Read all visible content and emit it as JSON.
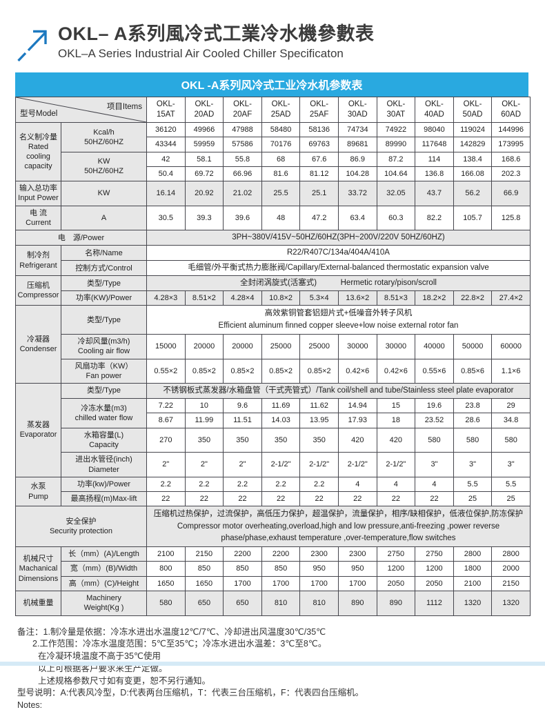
{
  "page": {
    "title": "OKL– A系列風冷式工業冷水機參數表",
    "subtitle": "OKL–A Series Industrial Air Cooled Chiller Specificaton",
    "banner": "OKL -A系列风冷式工业冷水机参数表",
    "accent_blue": "#29a9e0",
    "arrow_blue": "#1d79c0"
  },
  "table": {
    "corner": {
      "model_label": "型号Model",
      "items_label": "项目Items"
    },
    "models": [
      "OKL-\n15AT",
      "OKL-\n20AD",
      "OKL-\n20AF",
      "OKL-\n25AD",
      "OKL-\n25AF",
      "OKL-\n30AD",
      "OKL-\n30AT",
      "OKL-\n40AD",
      "OKL-\n50AD",
      "OKL-\n60AD"
    ],
    "rows": [
      {
        "n": "rated-cooling-kcal-50hz",
        "bg": "w",
        "cells": [
          {
            "k": "cat",
            "t": "名义制冷量\nRated\ncooling\ncapacity",
            "r": 4
          },
          {
            "k": "item",
            "t": "Kcal/h\n50HZ/60HZ",
            "r": 2
          }
        ],
        "vals": [
          "36120",
          "49966",
          "47988",
          "58480",
          "58136",
          "74734",
          "74922",
          "98040",
          "119024",
          "144996"
        ]
      },
      {
        "n": "rated-cooling-kcal-60hz",
        "bg": "w",
        "cells": [],
        "vals": [
          "43344",
          "59959",
          "57586",
          "70176",
          "69763",
          "89681",
          "89990",
          "117648",
          "142829",
          "173995"
        ]
      },
      {
        "n": "rated-cooling-kw-50hz",
        "bg": "w",
        "cells": [
          {
            "k": "item",
            "t": "KW\n50HZ/60HZ",
            "r": 2
          }
        ],
        "vals": [
          "42",
          "58.1",
          "55.8",
          "68",
          "67.6",
          "86.9",
          "87.2",
          "114",
          "138.4",
          "168.6"
        ]
      },
      {
        "n": "rated-cooling-kw-60hz",
        "bg": "w",
        "cells": [],
        "vals": [
          "50.4",
          "69.72",
          "66.96",
          "81.6",
          "81.12",
          "104.28",
          "104.64",
          "136.8",
          "166.08",
          "202.3"
        ]
      },
      {
        "n": "input-power",
        "bg": "g",
        "cells": [
          {
            "k": "cat",
            "t": "输入总功率\nInput Power"
          },
          {
            "k": "item",
            "t": "KW"
          }
        ],
        "vals": [
          "16.14",
          "20.92",
          "21.02",
          "25.5",
          "25.1",
          "33.72",
          "32.05",
          "43.7",
          "56.2",
          "66.9"
        ]
      },
      {
        "n": "current",
        "bg": "w",
        "cells": [
          {
            "k": "cat",
            "t": "电 流\nCurrent"
          },
          {
            "k": "item",
            "t": "A"
          }
        ],
        "vals": [
          "30.5",
          "39.3",
          "39.6",
          "48",
          "47.2",
          "63.4",
          "60.3",
          "82.2",
          "105.7",
          "125.8"
        ]
      },
      {
        "n": "power-source",
        "bg": "g",
        "cells": [
          {
            "k": "cat",
            "t": "电　源/Power",
            "c": 2
          },
          {
            "k": "wide",
            "t": "3PH~380V/415V~50HZ/60HZ(3PH~200V/220V  50HZ/60HZ)",
            "c": 10
          }
        ]
      },
      {
        "n": "refrigerant-name",
        "bg": "w",
        "cells": [
          {
            "k": "cat",
            "t": "制冷剂\nRefrigerant",
            "r": 2
          },
          {
            "k": "item",
            "t": "名称/Name"
          },
          {
            "k": "wide",
            "t": "R22/R407C/134a/404A/410A",
            "c": 10
          }
        ]
      },
      {
        "n": "refrigerant-control",
        "bg": "w",
        "cells": [
          {
            "k": "item",
            "t": "控制方式/Control"
          },
          {
            "k": "wide",
            "t": "毛细管/外平衡式热力膨胀阀/Capillary/External-balanced thermostatic expansion valve",
            "c": 10
          }
        ]
      },
      {
        "n": "compressor-type",
        "bg": "g",
        "cells": [
          {
            "k": "cat",
            "t": "压缩机\nCompressor",
            "r": 2
          },
          {
            "k": "item",
            "t": "类型/Type"
          },
          {
            "k": "wide",
            "t": "全封闭涡旋式(活塞式)　　　Hermetic rotary/pison/scroll",
            "c": 10
          }
        ]
      },
      {
        "n": "compressor-power",
        "bg": "g",
        "cells": [
          {
            "k": "item",
            "t": "功率(KW)/Power"
          }
        ],
        "vals": [
          "4.28×3",
          "8.51×2",
          "4.28×4",
          "10.8×2",
          "5.3×4",
          "13.6×2",
          "8.51×3",
          "18.2×2",
          "22.8×2",
          "27.4×2"
        ]
      },
      {
        "n": "condenser-type",
        "bg": "w",
        "cells": [
          {
            "k": "cat",
            "t": "冷凝器\nCondenser",
            "r": 3
          },
          {
            "k": "item",
            "t": "类型/Type"
          },
          {
            "k": "wide",
            "t": "高效紫铜管套铝翅片式+低噪音外转子风机\nEfficient aluminum finned copper sleeve+low noise external rotor fan",
            "c": 10
          }
        ]
      },
      {
        "n": "cooling-air-flow",
        "bg": "w",
        "cells": [
          {
            "k": "item",
            "t": "冷却风量(m3/h)\nCooling air flow"
          }
        ],
        "vals": [
          "15000",
          "20000",
          "20000",
          "25000",
          "25000",
          "30000",
          "30000",
          "40000",
          "50000",
          "60000"
        ]
      },
      {
        "n": "fan-power",
        "bg": "w",
        "cells": [
          {
            "k": "item",
            "t": "风扇功率（KW）\nFan power"
          }
        ],
        "vals": [
          "0.55×2",
          "0.85×2",
          "0.85×2",
          "0.85×2",
          "0.85×2",
          "0.42×6",
          "0.42×6",
          "0.55×6",
          "0.85×6",
          "1.1×6"
        ]
      },
      {
        "n": "evaporator-type",
        "bg": "g",
        "cells": [
          {
            "k": "cat",
            "t": "蒸发器\nEvaporator",
            "r": 5
          },
          {
            "k": "item",
            "t": "类型/Type"
          },
          {
            "k": "wide",
            "t": "不锈钢板式蒸发器/水箱盘管（干式壳管式）/Tank coil/shell and tube/Stainless steel plate evaporator",
            "c": 10
          }
        ]
      },
      {
        "n": "chilled-water-flow-50hz",
        "bg": "w",
        "cells": [
          {
            "k": "item",
            "t": "冷冻水量(m3)\nchilled water flow",
            "r": 2
          }
        ],
        "vals": [
          "7.22",
          "10",
          "9.6",
          "11.69",
          "11.62",
          "14.94",
          "15",
          "19.6",
          "23.8",
          "29"
        ]
      },
      {
        "n": "chilled-water-flow-60hz",
        "bg": "w",
        "cells": [],
        "vals": [
          "8.67",
          "11.99",
          "11.51",
          "14.03",
          "13.95",
          "17.93",
          "18",
          "23.52",
          "28.6",
          "34.8"
        ]
      },
      {
        "n": "tank-capacity",
        "bg": "w",
        "cells": [
          {
            "k": "item",
            "t": "水箱容量(L)\nCapacity"
          }
        ],
        "vals": [
          "270",
          "350",
          "350",
          "350",
          "350",
          "420",
          "420",
          "580",
          "580",
          "580"
        ]
      },
      {
        "n": "pipe-diameter",
        "bg": "w",
        "cells": [
          {
            "k": "item",
            "t": "进出水管径(inch)\nDiameter"
          }
        ],
        "vals": [
          "2\"",
          "2\"",
          "2\"",
          "2-1/2\"",
          "2-1/2\"",
          "2-1/2\"",
          "2-1/2\"",
          "3\"",
          "3\"",
          "3\""
        ]
      },
      {
        "n": "pump-power",
        "bg": "w",
        "cells": [
          {
            "k": "cat",
            "t": "水泵\nPump",
            "r": 2
          },
          {
            "k": "item",
            "t": "功率(kw)/Power"
          }
        ],
        "vals": [
          "2.2",
          "2.2",
          "2.2",
          "2.2",
          "2.2",
          "4",
          "4",
          "4",
          "5.5",
          "5.5"
        ]
      },
      {
        "n": "pump-max-lift",
        "bg": "w",
        "cells": [
          {
            "k": "item",
            "t": "最高扬程(m)Max-lift"
          }
        ],
        "vals": [
          "22",
          "22",
          "22",
          "22",
          "22",
          "22",
          "22",
          "22",
          "25",
          "25"
        ]
      },
      {
        "n": "security-protection",
        "bg": "g",
        "cells": [
          {
            "k": "cat",
            "t": "安全保护\nSecurity protection",
            "c": 2
          },
          {
            "k": "wide",
            "t": "压缩机过热保护，过流保护，高低压力保护，超温保护，流量保护，相序/缺相保护，低液位保护,防冻保护\nCompressor motor overheating,overload,high and low pressure,anti-freezing ,power reverse phase/phase,exhaust temperature ,over-temperature,flow switches",
            "c": 10
          }
        ]
      },
      {
        "n": "length",
        "bg": "w",
        "cells": [
          {
            "k": "cat",
            "t": "机械尺寸\nMachanical\nDimensions",
            "r": 3
          },
          {
            "k": "item",
            "t": "长（mm）(A)/Length"
          }
        ],
        "vals": [
          "2100",
          "2150",
          "2200",
          "2200",
          "2300",
          "2300",
          "2750",
          "2750",
          "2800",
          "2800"
        ]
      },
      {
        "n": "width",
        "bg": "w",
        "cells": [
          {
            "k": "item",
            "t": "宽（mm）(B)/Width"
          }
        ],
        "vals": [
          "800",
          "850",
          "850",
          "850",
          "950",
          "950",
          "1200",
          "1200",
          "1800",
          "2000"
        ]
      },
      {
        "n": "height",
        "bg": "w",
        "cells": [
          {
            "k": "item",
            "t": "高（mm）(C)/Height"
          }
        ],
        "vals": [
          "1650",
          "1650",
          "1700",
          "1700",
          "1700",
          "1700",
          "2050",
          "2050",
          "2100",
          "2150"
        ]
      },
      {
        "n": "machinery-weight",
        "bg": "g",
        "cells": [
          {
            "k": "cat",
            "t": "机械重量"
          },
          {
            "k": "item",
            "t": "Machinery\nWeight(Kg )"
          }
        ],
        "vals": [
          "580",
          "650",
          "650",
          "810",
          "810",
          "890",
          "890",
          "1112",
          "1320",
          "1320"
        ]
      }
    ]
  },
  "notes": {
    "lines": [
      "备注：1.制冷量是依据：冷冻水进出水温度12℃/7℃、冷却进出风温度30℃/35℃",
      "2.工作范围：冷冻水温度范围：5℃至35℃；冷冻水进出水温差：3℃至8℃。",
      "在冷凝环境温度不高于35℃使用",
      "以上可根据客户要求来生产定做。",
      "上述规格参数尺寸如有变更，恕不另行通知。",
      "型号说明：A:代表风冷型，D:代表两台压缩机，T：代表三台压缩机，F：代表四台压缩机。",
      "Notes:"
    ]
  }
}
